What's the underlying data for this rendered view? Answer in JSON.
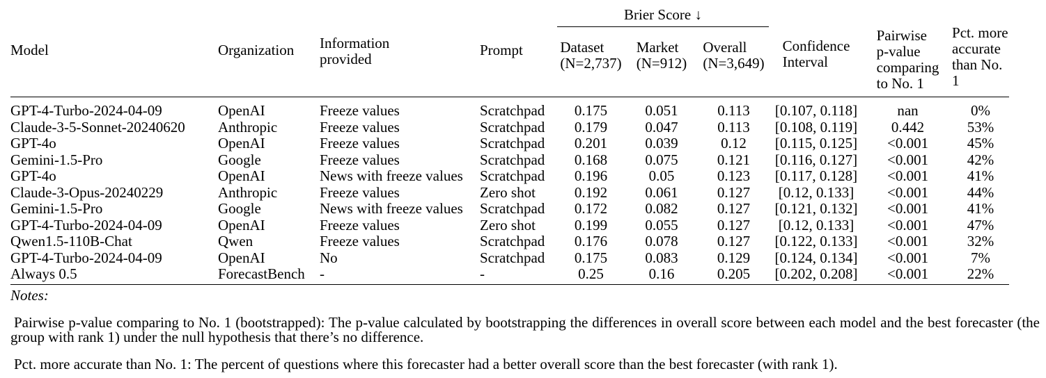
{
  "table": {
    "group_header": {
      "label": "Brier Score ↓"
    },
    "columns": [
      {
        "label": "Model"
      },
      {
        "label": "Organization"
      },
      {
        "label": "Information\nprovided"
      },
      {
        "label": "Prompt"
      },
      {
        "label": "Dataset\n(N=2,737)"
      },
      {
        "label": "Market\n(N=912)"
      },
      {
        "label": "Overall\n(N=3,649)"
      },
      {
        "label": "Confidence\nInterval"
      },
      {
        "label": "Pairwise\np-value\ncomparing\nto No. 1"
      },
      {
        "label": "Pct. more\naccurate\nthan No. 1"
      }
    ],
    "rows": [
      [
        "GPT-4-Turbo-2024-04-09",
        "OpenAI",
        "Freeze values",
        "Scratchpad",
        "0.175",
        "0.051",
        "0.113",
        "[0.107, 0.118]",
        "nan",
        "0%"
      ],
      [
        "Claude-3-5-Sonnet-20240620",
        "Anthropic",
        "Freeze values",
        "Scratchpad",
        "0.179",
        "0.047",
        "0.113",
        "[0.108, 0.119]",
        "0.442",
        "53%"
      ],
      [
        "GPT-4o",
        "OpenAI",
        "Freeze values",
        "Scratchpad",
        "0.201",
        "0.039",
        "0.12",
        "[0.115, 0.125]",
        "<0.001",
        "45%"
      ],
      [
        "Gemini-1.5-Pro",
        "Google",
        "Freeze values",
        "Scratchpad",
        "0.168",
        "0.075",
        "0.121",
        "[0.116, 0.127]",
        "<0.001",
        "42%"
      ],
      [
        "GPT-4o",
        "OpenAI",
        "News with freeze values",
        "Scratchpad",
        "0.196",
        "0.05",
        "0.123",
        "[0.117, 0.128]",
        "<0.001",
        "41%"
      ],
      [
        "Claude-3-Opus-20240229",
        "Anthropic",
        "Freeze values",
        "Zero shot",
        "0.192",
        "0.061",
        "0.127",
        "[0.12, 0.133]",
        "<0.001",
        "44%"
      ],
      [
        "Gemini-1.5-Pro",
        "Google",
        "News with freeze values",
        "Scratchpad",
        "0.172",
        "0.082",
        "0.127",
        "[0.121, 0.132]",
        "<0.001",
        "41%"
      ],
      [
        "GPT-4-Turbo-2024-04-09",
        "OpenAI",
        "Freeze values",
        "Zero shot",
        "0.199",
        "0.055",
        "0.127",
        "[0.12, 0.133]",
        "<0.001",
        "47%"
      ],
      [
        "Qwen1.5-110B-Chat",
        "Qwen",
        "Freeze values",
        "Scratchpad",
        "0.176",
        "0.078",
        "0.127",
        "[0.122, 0.133]",
        "<0.001",
        "32%"
      ],
      [
        "GPT-4-Turbo-2024-04-09",
        "OpenAI",
        "No",
        "Scratchpad",
        "0.175",
        "0.083",
        "0.129",
        "[0.124, 0.134]",
        "<0.001",
        "7%"
      ],
      [
        "Always 0.5",
        "ForecastBench",
        "-",
        "-",
        "0.25",
        "0.16",
        "0.205",
        "[0.202, 0.208]",
        "<0.001",
        "22%"
      ]
    ]
  },
  "notes": {
    "heading": "Notes:",
    "paragraphs": [
      "Pairwise p-value comparing to No. 1 (bootstrapped): The p-value calculated by bootstrapping the differences in overall score between each model and the best forecaster (the group with rank 1) under the null hypothesis that there’s no difference.",
      "Pct. more accurate than No. 1: The percent of questions where this forecaster had a better overall score than the best forecaster (with rank 1)."
    ]
  },
  "colors": {
    "text": "#000000",
    "background": "#ffffff",
    "rule": "#000000"
  }
}
